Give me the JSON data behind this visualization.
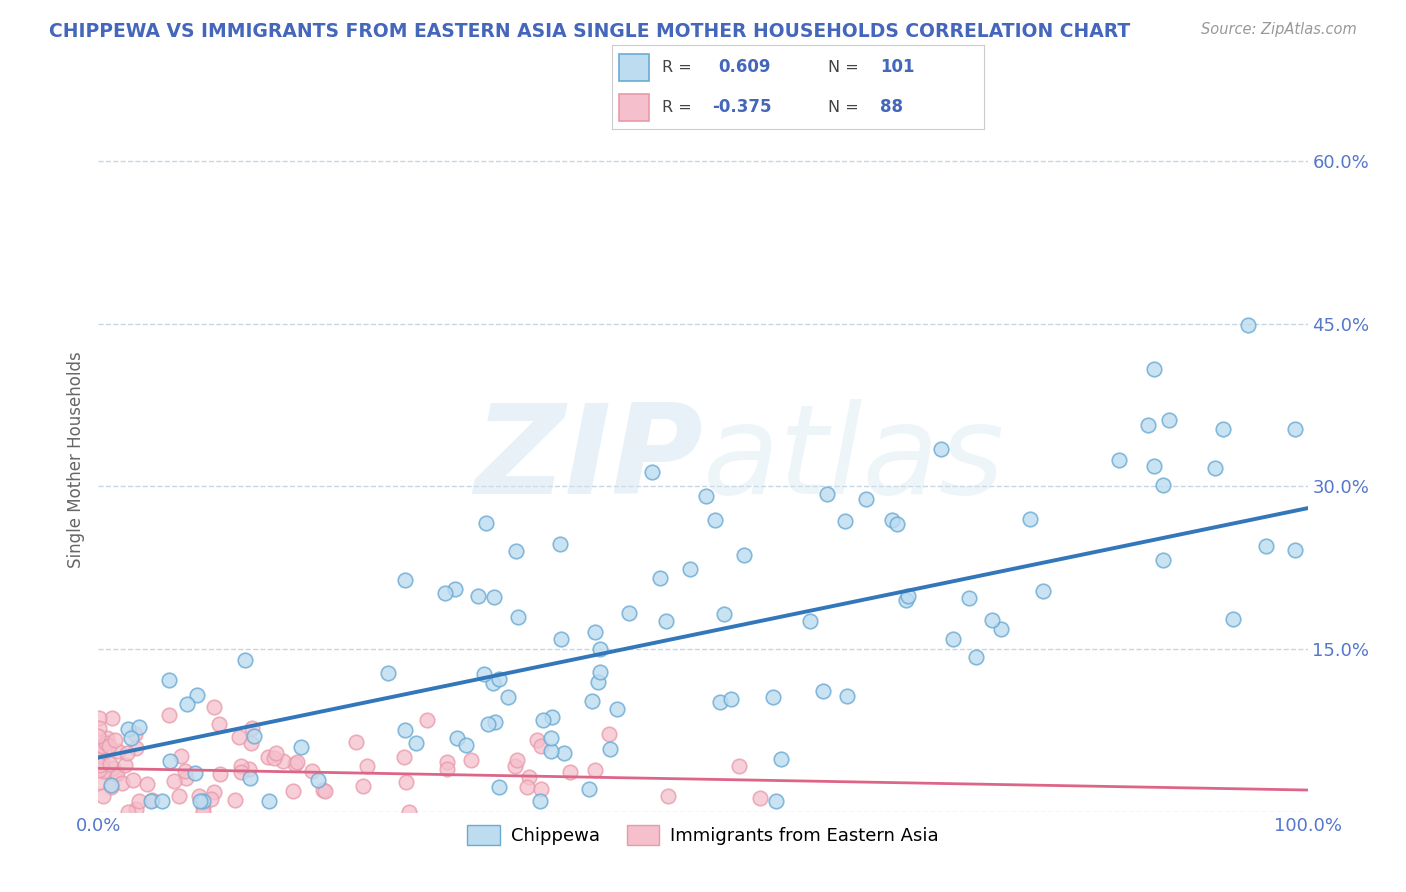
{
  "title": "CHIPPEWA VS IMMIGRANTS FROM EASTERN ASIA SINGLE MOTHER HOUSEHOLDS CORRELATION CHART",
  "source": "Source: ZipAtlas.com",
  "ylabel": "Single Mother Households",
  "xlim": [
    0,
    1.0
  ],
  "ylim": [
    0,
    0.65
  ],
  "yticks": [
    0.0,
    0.15,
    0.3,
    0.45,
    0.6
  ],
  "ytick_labels": [
    "",
    "15.0%",
    "30.0%",
    "45.0%",
    "60.0%"
  ],
  "xticks": [
    0.0,
    1.0
  ],
  "xtick_labels": [
    "0.0%",
    "100.0%"
  ],
  "r1": 0.609,
  "n1": 101,
  "r2": -0.375,
  "n2": 88,
  "color_blue_fill": "#BDDCF0",
  "color_blue_edge": "#6AAAD4",
  "color_blue_line": "#3377BB",
  "color_pink_fill": "#F5BFCC",
  "color_pink_edge": "#E899AA",
  "color_pink_line": "#DD6688",
  "color_title": "#4466BB",
  "color_tick": "#5577CC",
  "watermark_color": "#D0E4F0",
  "background_color": "#FFFFFF",
  "grid_color": "#BBCCDD",
  "seed": 12
}
